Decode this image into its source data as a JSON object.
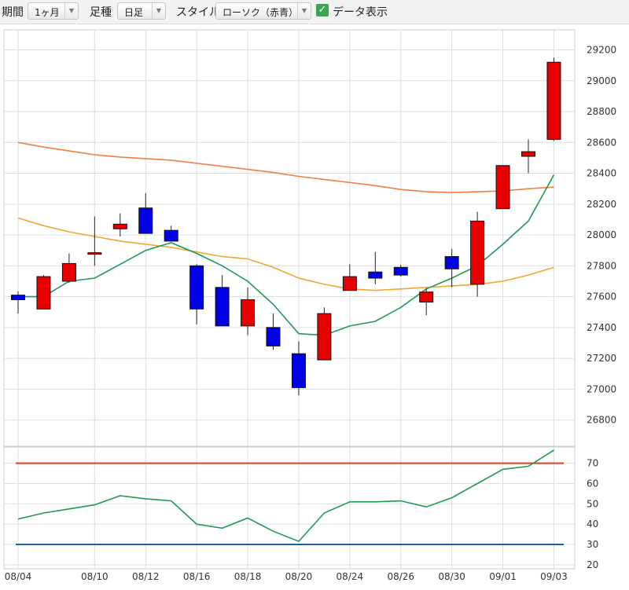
{
  "toolbar": {
    "period_label": "期間",
    "period_value": "1ヶ月",
    "foot_label": "足種",
    "foot_value": "日足",
    "style_label": "スタイル",
    "style_value": "ローソク（赤青）",
    "data_display_label": "データ表示",
    "data_display_checked": true,
    "check_glyph": "✓",
    "arrow_glyph": "▼"
  },
  "colors": {
    "up": "#e60000",
    "down": "#0000e6",
    "ma_short": "#1f9a55",
    "ma_mid": "#f0a830",
    "ma_long": "#f08040",
    "rsi": "#1f9a55",
    "rsi_upper": "#e83a1a",
    "rsi_lower": "#1f5fa8",
    "grid": "#dddddd"
  },
  "chart_data": [
    {
      "type": "candlestick",
      "title": "",
      "x_labels": [
        "08/04",
        "08/10",
        "08/12",
        "08/16",
        "08/18",
        "08/20",
        "08/24",
        "08/26",
        "08/30",
        "09/01",
        "09/03"
      ],
      "y_ticks": [
        26800,
        27000,
        27200,
        27400,
        27600,
        27800,
        28000,
        28200,
        28400,
        28600,
        28800,
        29000,
        29200
      ],
      "ylim": [
        26630,
        29330
      ],
      "grid": true,
      "candles": [
        {
          "date": "08/04",
          "open": 27610,
          "high": 27635,
          "low": 27490,
          "close": 27580
        },
        {
          "date": "08/05",
          "open": 27520,
          "high": 27740,
          "low": 27520,
          "close": 27730
        },
        {
          "date": "08/06",
          "open": 27700,
          "high": 27880,
          "low": 27690,
          "close": 27815
        },
        {
          "date": "08/10",
          "open": 27880,
          "high": 28120,
          "low": 27800,
          "close": 27885
        },
        {
          "date": "08/11",
          "open": 28040,
          "high": 28140,
          "low": 27990,
          "close": 28070
        },
        {
          "date": "08/12",
          "open": 28175,
          "high": 28270,
          "low": 28010,
          "close": 28010
        },
        {
          "date": "08/13",
          "open": 28030,
          "high": 28060,
          "low": 27970,
          "close": 27960
        },
        {
          "date": "08/16",
          "open": 27800,
          "high": 27810,
          "low": 27420,
          "close": 27520
        },
        {
          "date": "08/17",
          "open": 27660,
          "high": 27740,
          "low": 27410,
          "close": 27410
        },
        {
          "date": "08/18",
          "open": 27410,
          "high": 27660,
          "low": 27350,
          "close": 27580
        },
        {
          "date": "08/19",
          "open": 27400,
          "high": 27490,
          "low": 27255,
          "close": 27280
        },
        {
          "date": "08/20",
          "open": 27230,
          "high": 27310,
          "low": 26960,
          "close": 27010
        },
        {
          "date": "08/23",
          "open": 27190,
          "high": 27530,
          "low": 27190,
          "close": 27490
        },
        {
          "date": "08/24",
          "open": 27640,
          "high": 27810,
          "low": 27640,
          "close": 27730
        },
        {
          "date": "08/25",
          "open": 27760,
          "high": 27890,
          "low": 27680,
          "close": 27720
        },
        {
          "date": "08/26",
          "open": 27790,
          "high": 27805,
          "low": 27730,
          "close": 27740
        },
        {
          "date": "08/27",
          "open": 27565,
          "high": 27655,
          "low": 27480,
          "close": 27630
        },
        {
          "date": "08/30",
          "open": 27860,
          "high": 27910,
          "low": 27660,
          "close": 27780
        },
        {
          "date": "08/31",
          "open": 27680,
          "high": 28150,
          "low": 27600,
          "close": 28090
        },
        {
          "date": "09/01",
          "open": 28170,
          "high": 28450,
          "low": 28170,
          "close": 28450
        },
        {
          "date": "09/02",
          "open": 28510,
          "high": 28620,
          "low": 28400,
          "close": 28540
        },
        {
          "date": "09/03",
          "open": 28620,
          "high": 29150,
          "low": 28610,
          "close": 29120
        }
      ],
      "ma_short": [
        27600,
        27600,
        27700,
        27720,
        27810,
        27900,
        27950,
        27880,
        27800,
        27700,
        27550,
        27360,
        27350,
        27410,
        27440,
        27530,
        27650,
        27720,
        27800,
        27940,
        28090,
        28390
      ],
      "ma_mid": [
        28110,
        28060,
        28020,
        27990,
        27960,
        27940,
        27920,
        27890,
        27860,
        27845,
        27790,
        27720,
        27680,
        27650,
        27640,
        27650,
        27660,
        27670,
        27680,
        27700,
        27740,
        27790
      ],
      "ma_long": [
        28600,
        28570,
        28545,
        28520,
        28505,
        28495,
        28485,
        28465,
        28445,
        28425,
        28405,
        28380,
        28360,
        28340,
        28320,
        28295,
        28280,
        28275,
        28280,
        28285,
        28300,
        28310
      ]
    },
    {
      "type": "line",
      "title": "",
      "y_ticks": [
        20,
        30,
        40,
        50,
        60,
        70
      ],
      "ylim": [
        18,
        78
      ],
      "upper_band": 70,
      "lower_band": 30,
      "values": [
        42.5,
        45.5,
        47.5,
        49.5,
        54,
        52.5,
        51.5,
        40,
        38,
        43,
        36.5,
        31.5,
        45.5,
        51,
        51,
        51.5,
        48.5,
        53,
        60,
        67,
        68.5,
        76.5
      ]
    }
  ]
}
